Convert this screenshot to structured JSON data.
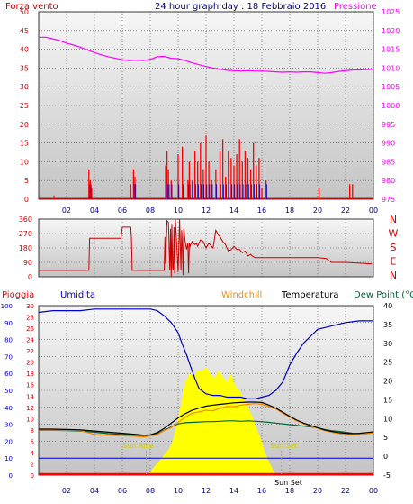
{
  "header": {
    "wind_label": "Forza vento",
    "title": "24 hour graph day : 18 Febbraio 2016",
    "pressure_label": "Pressione"
  },
  "labels": {
    "rain": "Pioggia",
    "humidity": "Umidita",
    "windchill": "Windchill",
    "temperature": "Temperatura",
    "dewpoint": "Dew Point (°C"
  },
  "annotations": {
    "sun_rise": "Sun Rise",
    "sun_set": "Sun Set",
    "sun_set_lower": "Sun Set"
  },
  "colors": {
    "wind": "#cc0000",
    "gust": "#ff0000",
    "pressure": "#ff00ff",
    "direction": "#cc0000",
    "humidity": "#0000cc",
    "temperature": "#000000",
    "windchill": "#ff8800",
    "dewpoint": "#006633",
    "rain": "#ff0000",
    "solar": "#ffff00",
    "grid": "#555555",
    "panel_top": "#f6f6f6",
    "panel_bottom": "#c8c8c8"
  },
  "chart_data": [
    {
      "type": "line",
      "title": "24 hour graph day : 18 Febbraio 2016",
      "x_ticks": [
        "02",
        "04",
        "06",
        "08",
        "10",
        "12",
        "14",
        "16",
        "18",
        "20",
        "22",
        "00"
      ],
      "y_left": {
        "label": "Forza vento",
        "ticks": [
          0,
          5,
          10,
          15,
          20,
          25,
          30,
          35,
          40,
          45,
          50
        ],
        "range": [
          0,
          50
        ]
      },
      "y_right": {
        "label": "Pressione",
        "ticks": [
          975,
          980,
          985,
          990,
          995,
          1000,
          1005,
          1010,
          1015,
          1020,
          1025
        ],
        "range": [
          975,
          1025
        ]
      },
      "series": [
        {
          "name": "Pressione",
          "x": [
            0,
            0.5,
            1,
            1.5,
            2,
            2.5,
            3,
            3.5,
            4,
            4.5,
            5,
            5.5,
            6,
            6.5,
            7,
            7.5,
            8,
            8.5,
            9,
            9.5,
            10,
            10.5,
            11,
            11.5,
            12,
            12.5,
            13,
            13.5,
            14,
            14.5,
            15,
            15.5,
            16,
            16.5,
            17,
            17.5,
            18,
            18.5,
            19,
            19.5,
            20,
            20.5,
            21,
            21.5,
            22,
            22.5,
            23,
            23.5,
            24
          ],
          "values": [
            1018.2,
            1018.2,
            1017.8,
            1017.3,
            1016.6,
            1016.1,
            1015.5,
            1014.8,
            1014.1,
            1013.5,
            1013.0,
            1012.6,
            1012.2,
            1012.0,
            1012.1,
            1012.0,
            1012.3,
            1013.0,
            1013.1,
            1012.6,
            1012.5,
            1012.0,
            1011.4,
            1010.9,
            1010.4,
            1010.0,
            1009.7,
            1009.4,
            1009.3,
            1009.2,
            1009.3,
            1009.2,
            1009.2,
            1009.1,
            1009.0,
            1008.9,
            1009.0,
            1008.9,
            1009.0,
            1009.0,
            1008.8,
            1008.6,
            1008.8,
            1009.1,
            1009.3,
            1009.5,
            1009.5,
            1009.6,
            1009.7
          ]
        },
        {
          "name": "Wind gust",
          "x": [
            1.1,
            3.6,
            3.7,
            3.8,
            6.6,
            6.8,
            6.9,
            9.1,
            9.2,
            9.3,
            9.5,
            10.0,
            10.3,
            10.7,
            10.8,
            11.0,
            11.2,
            11.4,
            11.6,
            11.8,
            12.0,
            12.2,
            12.4,
            12.7,
            13.0,
            13.2,
            13.4,
            13.6,
            13.8,
            14.0,
            14.2,
            14.4,
            14.6,
            14.8,
            15.0,
            15.2,
            15.4,
            15.6,
            15.8,
            16.0,
            16.3,
            20.1,
            22.3,
            22.5
          ],
          "values": [
            1,
            8,
            5,
            3,
            4,
            8,
            6,
            9,
            13,
            8,
            5,
            12,
            14,
            5,
            10,
            5,
            13,
            10,
            15,
            8,
            17,
            10,
            5,
            8,
            13,
            16,
            6,
            13,
            11,
            9,
            12,
            16,
            10,
            13,
            11,
            8,
            15,
            9,
            11,
            3,
            5,
            3,
            4,
            4
          ]
        }
      ]
    },
    {
      "type": "line",
      "y_left": {
        "ticks": [
          0,
          90,
          180,
          270,
          360
        ],
        "range": [
          0,
          360
        ]
      },
      "y_right": {
        "ticks": [
          "N",
          "W",
          "S",
          "E",
          "N"
        ]
      },
      "series": [
        {
          "name": "Direzione vento",
          "x": [
            0,
            3.6,
            3.65,
            5.9,
            6.0,
            6.6,
            6.65,
            6.7,
            9.0,
            9.05,
            9.1,
            9.2,
            9.3,
            9.4,
            9.45,
            9.5,
            9.55,
            9.6,
            9.65,
            9.7,
            9.75,
            9.8,
            10.0,
            10.1,
            10.2,
            10.25,
            10.3,
            10.35,
            10.4,
            10.5,
            10.6,
            10.7,
            10.75,
            10.8,
            10.85,
            10.9,
            11.0,
            11.2,
            11.3,
            11.4,
            11.6,
            11.8,
            12.0,
            12.2,
            12.3,
            12.5,
            12.7,
            12.9,
            13.0,
            13.2,
            13.4,
            13.6,
            13.8,
            14.0,
            14.2,
            14.4,
            14.6,
            14.8,
            15.0,
            15.2,
            15.3,
            15.5,
            17.0,
            20.0,
            20.6,
            21.0,
            22.0,
            23.0,
            23.9
          ],
          "values": [
            40,
            40,
            240,
            240,
            310,
            310,
            240,
            40,
            40,
            250,
            80,
            350,
            340,
            40,
            300,
            0,
            330,
            60,
            40,
            310,
            20,
            360,
            30,
            360,
            40,
            290,
            180,
            10,
            300,
            220,
            170,
            210,
            20,
            210,
            190,
            200,
            220,
            200,
            210,
            190,
            230,
            220,
            180,
            210,
            200,
            180,
            290,
            260,
            250,
            220,
            200,
            160,
            170,
            190,
            170,
            170,
            150,
            160,
            130,
            140,
            130,
            120,
            120,
            120,
            115,
            90,
            90,
            85,
            80
          ]
        }
      ]
    },
    {
      "type": "line",
      "x_ticks": [
        "02",
        "04",
        "06",
        "08",
        "10",
        "12",
        "14",
        "16",
        "18",
        "20",
        "22",
        "00"
      ],
      "y_left_rain": {
        "label": "Pioggia",
        "ticks": [
          0,
          2,
          4,
          6,
          8,
          10,
          12,
          14,
          16,
          18,
          20,
          22,
          24,
          26,
          28,
          30
        ],
        "range": [
          0,
          30
        ]
      },
      "y_left_humidity": {
        "label": "Umidita",
        "ticks": [
          0,
          10,
          20,
          30,
          40,
          50,
          60,
          70,
          80,
          90,
          100
        ],
        "range": [
          0,
          100
        ]
      },
      "y_right": {
        "label": "Dew Point (°C",
        "ticks": [
          -5,
          0,
          5,
          10,
          15,
          20,
          25,
          30,
          35,
          40
        ],
        "range": [
          -5,
          40
        ]
      },
      "series": [
        {
          "name": "Umidita",
          "x": [
            0,
            1,
            2,
            3,
            4,
            5,
            6,
            7,
            8,
            8.5,
            9,
            9.5,
            10,
            10.3,
            10.6,
            10.9,
            11.2,
            11.5,
            12,
            12.5,
            13,
            13.5,
            14,
            14.5,
            15,
            15.5,
            16,
            16.5,
            17,
            17.5,
            18,
            18.5,
            19,
            19.5,
            20,
            21,
            22,
            23,
            24
          ],
          "values": [
            96,
            97,
            97,
            97,
            98,
            98,
            98,
            98,
            98,
            97,
            94,
            90,
            84,
            77,
            71,
            64,
            57,
            51,
            48,
            47,
            47,
            46,
            46,
            46,
            45,
            45,
            46,
            47,
            50,
            55,
            65,
            72,
            78,
            82,
            86,
            88,
            90,
            91,
            91
          ]
        },
        {
          "name": "Temperatura",
          "x": [
            0,
            1,
            2,
            3,
            4,
            5,
            6,
            7,
            7.5,
            8,
            8.5,
            9,
            9.5,
            10,
            10.5,
            11,
            11.5,
            12,
            12.5,
            13,
            13.5,
            14,
            14.5,
            15,
            15.5,
            16,
            16.5,
            17,
            17.5,
            18,
            18.5,
            19,
            19.5,
            20,
            20.5,
            21,
            21.5,
            22,
            22.5,
            23,
            23.5,
            24
          ],
          "values": [
            7.2,
            7.2,
            7.1,
            7.0,
            6.7,
            6.4,
            6.1,
            5.8,
            5.6,
            5.7,
            6.3,
            7.4,
            8.8,
            10.2,
            11.3,
            12.2,
            12.8,
            13.3,
            13.6,
            13.8,
            14.0,
            14.2,
            14.3,
            14.4,
            14.4,
            14.3,
            13.6,
            12.8,
            11.7,
            10.6,
            9.6,
            8.8,
            8.2,
            7.6,
            7.0,
            6.6,
            6.3,
            6.1,
            6.0,
            6.1,
            6.3,
            6.5
          ]
        },
        {
          "name": "Windchill",
          "x": [
            0,
            1,
            2,
            3,
            4,
            5,
            6,
            7,
            7.5,
            8,
            8.5,
            9,
            9.5,
            10,
            10.5,
            11,
            11.5,
            12,
            12.5,
            13,
            13.5,
            14,
            14.5,
            15,
            15.5,
            16,
            16.5,
            17,
            17.5,
            18,
            18.5,
            19,
            19.5,
            20,
            20.5,
            21,
            21.5,
            22,
            22.5,
            23,
            23.5,
            24
          ],
          "values": [
            7.0,
            7.0,
            6.9,
            6.8,
            5.8,
            5.6,
            5.5,
            5.3,
            5.1,
            5.4,
            5.8,
            6.8,
            7.6,
            9.0,
            10.4,
            11.4,
            11.8,
            12.2,
            12.1,
            12.8,
            13.2,
            13.2,
            13.6,
            13.8,
            14.0,
            13.8,
            13.2,
            12.6,
            11.4,
            10.4,
            9.4,
            8.6,
            8.0,
            7.4,
            6.8,
            6.4,
            6.0,
            5.8,
            5.7,
            5.8,
            6.0,
            6.2
          ]
        },
        {
          "name": "Dew Point (°C",
          "x": [
            0,
            1,
            2,
            3,
            4,
            5,
            6,
            7,
            7.5,
            8,
            8.5,
            9,
            9.5,
            10,
            10.5,
            11,
            11.5,
            12,
            12.5,
            13,
            13.5,
            14,
            14.5,
            15,
            15.5,
            16,
            16.5,
            17,
            17.5,
            18,
            18.5,
            19,
            19.5,
            20,
            20.5,
            21,
            21.5,
            22,
            22.5,
            23,
            23.5,
            24
          ],
          "values": [
            6.9,
            6.9,
            6.8,
            6.7,
            6.4,
            6.0,
            5.8,
            5.5,
            5.3,
            5.5,
            6.0,
            6.9,
            7.8,
            8.6,
            8.9,
            9.0,
            9.1,
            9.2,
            9.2,
            9.3,
            9.4,
            9.4,
            9.3,
            9.4,
            9.3,
            9.2,
            9.0,
            8.8,
            8.6,
            8.4,
            8.2,
            8.0,
            7.8,
            7.6,
            7.1,
            6.8,
            6.6,
            6.4,
            6.1,
            5.9,
            6.0,
            6.2
          ]
        },
        {
          "name": "Solar",
          "x": [
            0,
            7.6,
            7.9,
            8.1,
            8.4,
            8.7,
            9.0,
            9.3,
            9.6,
            9.9,
            10.2,
            10.5,
            10.8,
            11.1,
            11.4,
            11.7,
            12.0,
            12.3,
            12.6,
            12.9,
            13.2,
            13.5,
            13.8,
            14.1,
            14.4,
            14.7,
            15.0,
            15.3,
            15.6,
            15.9,
            16.2,
            16.5,
            16.8,
            17.0,
            24
          ],
          "values": [
            0,
            0,
            1,
            3,
            6,
            9,
            12,
            15,
            20,
            30,
            42,
            55,
            60,
            58,
            62,
            61,
            64,
            60,
            57,
            62,
            58,
            55,
            60,
            52,
            50,
            45,
            40,
            35,
            28,
            22,
            14,
            8,
            3,
            0,
            0
          ]
        },
        {
          "name": "Pioggia",
          "x": [
            0,
            24
          ],
          "values": [
            0,
            0
          ]
        }
      ]
    }
  ]
}
